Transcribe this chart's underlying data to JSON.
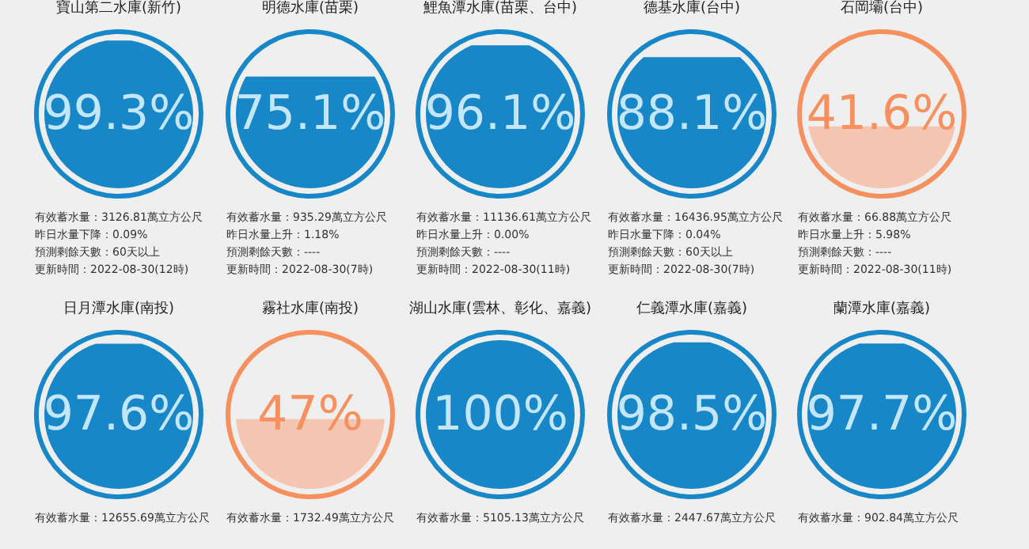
{
  "chart_data": [
    {
      "type": "other",
      "title": "寶山第二水庫(新竹)",
      "values": [
        99.3
      ],
      "value_labels": [
        "99.3%"
      ],
      "color": "#1787c8",
      "colors": [
        "#1787c8"
      ],
      "annotations": [
        "有效蓄水量：3126.81萬立方公尺",
        "昨日水量下降：0.09%",
        "預測剩餘天數：60天以上",
        "更新時間：2022-08-30(12時)"
      ]
    },
    {
      "type": "other",
      "title": "明德水庫(苗栗)",
      "values": [
        75.1
      ],
      "value_labels": [
        "75.1%"
      ],
      "color": "#1787c8",
      "colors": [
        "#1787c8"
      ],
      "annotations": [
        "有效蓄水量：935.29萬立方公尺",
        "昨日水量上升：1.18%",
        "預測剩餘天數：----",
        "更新時間：2022-08-30(7時)"
      ]
    },
    {
      "type": "other",
      "title": "鯉魚潭水庫(苗栗、台中)",
      "values": [
        96.1
      ],
      "value_labels": [
        "96.1%"
      ],
      "color": "#1787c8",
      "colors": [
        "#1787c8"
      ],
      "annotations": [
        "有效蓄水量：11136.61萬立方公尺",
        "昨日水量上升：0.00%",
        "預測剩餘天數：----",
        "更新時間：2022-08-30(11時)"
      ]
    },
    {
      "type": "other",
      "title": "德基水庫(台中)",
      "values": [
        88.1
      ],
      "value_labels": [
        "88.1%"
      ],
      "color": "#1787c8",
      "colors": [
        "#1787c8"
      ],
      "annotations": [
        "有效蓄水量：16436.95萬立方公尺",
        "昨日水量下降：0.04%",
        "預測剩餘天數：60天以上",
        "更新時間：2022-08-30(7時)"
      ]
    },
    {
      "type": "other",
      "title": "石岡壩(台中)",
      "values": [
        41.6
      ],
      "value_labels": [
        "41.6%"
      ],
      "color": "#f6915f",
      "colors": [
        "#f4c5b0"
      ],
      "annotations": [
        "有效蓄水量：66.88萬立方公尺",
        "昨日水量上升：5.98%",
        "預測剩餘天數：----",
        "更新時間：2022-08-30(11時)"
      ]
    },
    {
      "type": "other",
      "title": "日月潭水庫(南投)",
      "values": [
        97.6
      ],
      "value_labels": [
        "97.6%"
      ],
      "color": "#1787c8",
      "colors": [
        "#1787c8"
      ],
      "annotations": [
        "有效蓄水量：12655.69萬立方公尺"
      ]
    },
    {
      "type": "other",
      "title": "霧社水庫(南投)",
      "values": [
        47
      ],
      "value_labels": [
        "47%"
      ],
      "color": "#f6915f",
      "colors": [
        "#f4c5b0"
      ],
      "annotations": [
        "有效蓄水量：1732.49萬立方公尺"
      ]
    },
    {
      "type": "other",
      "title": "湖山水庫(雲林、彰化、嘉義)",
      "values": [
        100
      ],
      "value_labels": [
        "100%"
      ],
      "color": "#1787c8",
      "colors": [
        "#1787c8"
      ],
      "annotations": [
        "有效蓄水量：5105.13萬立方公尺"
      ]
    },
    {
      "type": "other",
      "title": "仁義潭水庫(嘉義)",
      "values": [
        98.5
      ],
      "value_labels": [
        "98.5%"
      ],
      "color": "#1787c8",
      "colors": [
        "#1787c8"
      ],
      "annotations": [
        "有效蓄水量：2447.67萬立方公尺"
      ]
    },
    {
      "type": "other",
      "title": "蘭潭水庫(嘉義)",
      "values": [
        97.7
      ],
      "value_labels": [
        "97.7%"
      ],
      "color": "#1787c8",
      "colors": [
        "#1787c8"
      ],
      "annotations": [
        "有效蓄水量：902.84萬立方公尺"
      ]
    }
  ]
}
